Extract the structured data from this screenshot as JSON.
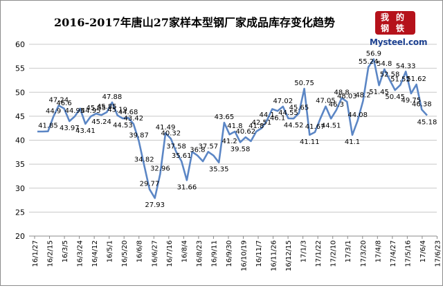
{
  "title": "2016-2017年唐山27家样本型钢厂家成品库存变化趋势",
  "logo": {
    "seal_chars": [
      "我",
      "的",
      "钢",
      "铁"
    ],
    "site": "Mysteel.com"
  },
  "colors": {
    "line": "#5b86c5",
    "grid": "#c8c8c8",
    "axis": "#888888",
    "label": "#000000"
  },
  "chart_data": {
    "type": "line",
    "title": "2016-2017年唐山27家样本型钢厂家成品库存变化趋势",
    "xlabel": "",
    "ylabel": "",
    "ylim": [
      20,
      60
    ],
    "yticks": [
      20,
      25,
      30,
      35,
      40,
      45,
      50,
      55,
      60
    ],
    "grid": true,
    "legend": "none",
    "x_tick_labels": [
      "16/1/27",
      "16/2/15",
      "16/3/5",
      "16/3/24",
      "16/4/12",
      "16/5/1",
      "16/5/20",
      "16/6/8",
      "16/6/27",
      "16/7/16",
      "16/8/4",
      "16/8/23",
      "16/9/11",
      "16/9/30",
      "16/10/19",
      "16/11/7",
      "16/11/26",
      "16/12/15",
      "17/1/3",
      "17/1/22",
      "17/2/10",
      "17/3/1",
      "17/3/20",
      "17/4/8",
      "17/4/27",
      "17/5/16",
      "17/6/4",
      "17/6/23"
    ],
    "series": [
      {
        "values": [
          41.8,
          41.8,
          41.85,
          44.9,
          47.24,
          46.6,
          43.97,
          44.95,
          46.6,
          43.41,
          44.95,
          45.55,
          45.24,
          45.85,
          47.88,
          45.19,
          44.53,
          44.68,
          43.42,
          39.87,
          34.82,
          29.77,
          27.93,
          32.96,
          41.49,
          40.32,
          37.58,
          35.61,
          31.66,
          37.58,
          36.8,
          35.6,
          37.57,
          36.8,
          35.35,
          43.65,
          41.2,
          41.8,
          39.58,
          40.62,
          39.8,
          41.8,
          42.51,
          44.1,
          46.5,
          46.1,
          47.02,
          44.55,
          44.52,
          45.65,
          50.75,
          41.11,
          41.67,
          44.52,
          47.05,
          44.51,
          46.3,
          48.8,
          48.03,
          41.1,
          44.08,
          48.2,
          55.24,
          56.9,
          51.45,
          54.8,
          52.58,
          50.45,
          51.52,
          54.33,
          49.75,
          51.62,
          46.38,
          45.18
        ],
        "labels": [
          "",
          "",
          "41.85",
          "44.9",
          "47.24",
          "46.6",
          "43.97",
          "44.95",
          "",
          "43.41",
          "44.95",
          "45.55",
          "45.24",
          "45.85",
          "47.88",
          "45.19",
          "44.53",
          "44.68",
          "43.42",
          "39.87",
          "34.82",
          "29.77",
          "27.93",
          "32.96",
          "41.49",
          "40.32",
          "37.58",
          "35.61",
          "31.66",
          "",
          "36.8",
          "",
          "37.57",
          "",
          "35.35",
          "43.65",
          "41.2",
          "41.8",
          "39.58",
          "40.62",
          "",
          "41.8",
          "42.51",
          "44.1",
          "",
          "46.1",
          "47.02",
          "44.55",
          "44.52",
          "45.65",
          "50.75",
          "41.11",
          "41.67",
          "",
          "47.05",
          "44.51",
          "46.3",
          "48.8",
          "48.03",
          "41.1",
          "44.08",
          "48.2",
          "55.24",
          "56.9",
          "51.45",
          "54.8",
          "52.58",
          "50.45",
          "51.52",
          "54.33",
          "49.75",
          "51.62",
          "46.38",
          "45.18"
        ]
      }
    ]
  }
}
